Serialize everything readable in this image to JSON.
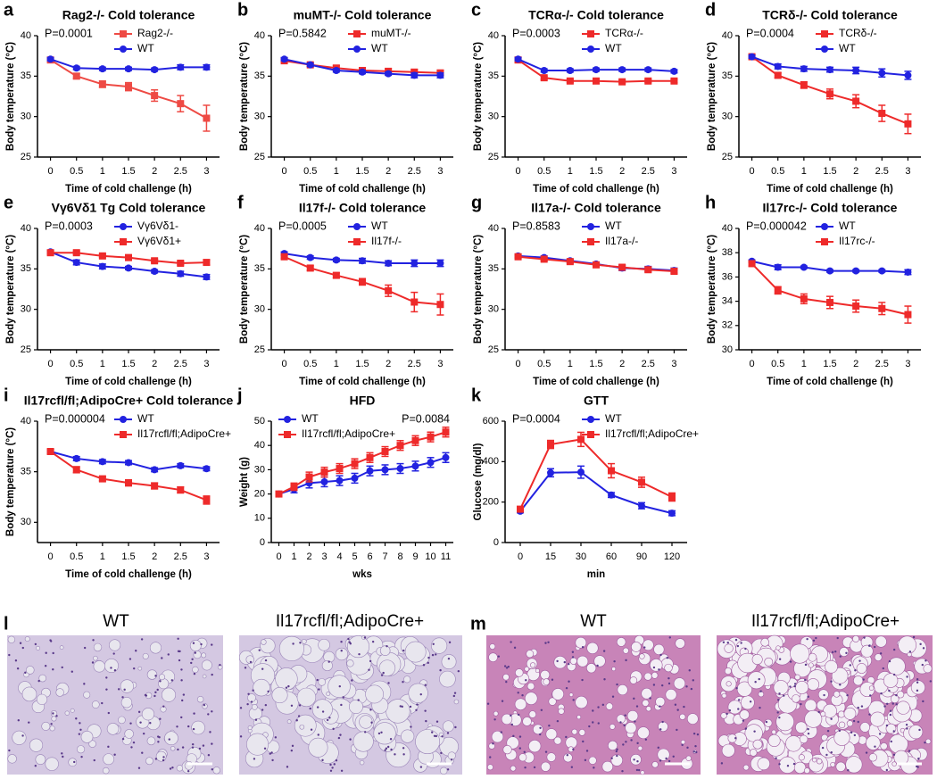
{
  "chart_data": [
    {
      "type": "line",
      "panel": "a",
      "title": "Rag2-/- Cold tolerance",
      "annotation": "P=0.0001",
      "xlabel": "Time of cold challenge (h)",
      "ylabel": "Body temperature (°C)",
      "x": [
        0,
        0.5,
        1,
        1.5,
        2,
        2.5,
        3
      ],
      "xlim": [
        -0.25,
        3.25
      ],
      "xticks": [
        0,
        0.5,
        1,
        1.5,
        2,
        2.5,
        3
      ],
      "ylim": [
        25,
        40
      ],
      "yticks": [
        25,
        30,
        35,
        40
      ],
      "legend": "upper right",
      "series": [
        {
          "name": "Rag2-/-",
          "color": "#ee4a44",
          "marker": "square",
          "values": [
            37.0,
            35.0,
            34.0,
            33.7,
            32.6,
            31.6,
            29.8
          ],
          "errors": [
            0.2,
            0.3,
            0.4,
            0.5,
            0.7,
            1.0,
            1.6
          ]
        },
        {
          "name": "WT",
          "color": "#2222e0",
          "marker": "circle",
          "values": [
            37.1,
            36.0,
            35.9,
            35.9,
            35.8,
            36.1,
            36.1
          ],
          "errors": [
            0.2,
            0.2,
            0.2,
            0.2,
            0.2,
            0.3,
            0.3
          ]
        }
      ]
    },
    {
      "type": "line",
      "panel": "b",
      "title": "muMT-/- Cold tolerance",
      "annotation": "P=0.5842",
      "xlabel": "Time of cold challenge (h)",
      "ylabel": "Body temperature (°C)",
      "x": [
        0,
        0.5,
        1,
        1.5,
        2,
        2.5,
        3
      ],
      "xlim": [
        -0.25,
        3.25
      ],
      "xticks": [
        0,
        0.5,
        1,
        1.5,
        2,
        2.5,
        3
      ],
      "ylim": [
        25,
        40
      ],
      "yticks": [
        25,
        30,
        35,
        40
      ],
      "legend": "upper right",
      "series": [
        {
          "name": "muMT-/-",
          "color": "#ee2a2a",
          "marker": "square",
          "values": [
            36.9,
            36.4,
            36.0,
            35.7,
            35.6,
            35.5,
            35.4
          ],
          "errors": [
            0.2,
            0.2,
            0.3,
            0.3,
            0.3,
            0.3,
            0.3
          ]
        },
        {
          "name": "WT",
          "color": "#2222e0",
          "marker": "circle",
          "values": [
            37.1,
            36.4,
            35.7,
            35.5,
            35.3,
            35.1,
            35.1
          ],
          "errors": [
            0.2,
            0.2,
            0.2,
            0.2,
            0.2,
            0.3,
            0.3
          ]
        }
      ]
    },
    {
      "type": "line",
      "panel": "c",
      "title": "TCRα-/- Cold tolerance",
      "annotation": "P=0.0003",
      "xlabel": "Time of cold challenge (h)",
      "ylabel": "Body temperature (°C)",
      "x": [
        0,
        0.5,
        1,
        1.5,
        2,
        2.5,
        3
      ],
      "xlim": [
        -0.25,
        3.25
      ],
      "xticks": [
        0,
        0.5,
        1,
        1.5,
        2,
        2.5,
        3
      ],
      "ylim": [
        25,
        40
      ],
      "yticks": [
        25,
        30,
        35,
        40
      ],
      "legend": "upper right",
      "series": [
        {
          "name": "TCRα-/-",
          "color": "#ee2a2a",
          "marker": "square",
          "values": [
            37.0,
            34.8,
            34.4,
            34.4,
            34.3,
            34.4,
            34.4
          ],
          "errors": [
            0.3,
            0.2,
            0.2,
            0.2,
            0.2,
            0.2,
            0.2
          ]
        },
        {
          "name": "WT",
          "color": "#2222e0",
          "marker": "circle",
          "values": [
            37.1,
            35.7,
            35.7,
            35.8,
            35.8,
            35.8,
            35.6
          ],
          "errors": [
            0.2,
            0.2,
            0.2,
            0.2,
            0.2,
            0.2,
            0.2
          ]
        }
      ]
    },
    {
      "type": "line",
      "panel": "d",
      "title": "TCRδ-/- Cold tolerance",
      "annotation": "P=0.0004",
      "xlabel": "Time of cold challenge (h)",
      "ylabel": "Body temperature (°C)",
      "x": [
        0,
        0.5,
        1,
        1.5,
        2,
        2.5,
        3
      ],
      "xlim": [
        -0.25,
        3.25
      ],
      "xticks": [
        0,
        0.5,
        1,
        1.5,
        2,
        2.5,
        3
      ],
      "ylim": [
        25,
        40
      ],
      "yticks": [
        25,
        30,
        35,
        40
      ],
      "legend": "upper right",
      "series": [
        {
          "name": "TCRδ-/-",
          "color": "#ee2a2a",
          "marker": "square",
          "values": [
            37.4,
            35.1,
            33.9,
            32.8,
            31.9,
            30.4,
            29.1
          ],
          "errors": [
            0.2,
            0.3,
            0.4,
            0.6,
            0.8,
            1.0,
            1.2
          ]
        },
        {
          "name": "WT",
          "color": "#2222e0",
          "marker": "circle",
          "values": [
            37.4,
            36.2,
            35.9,
            35.8,
            35.7,
            35.4,
            35.1
          ],
          "errors": [
            0.2,
            0.3,
            0.3,
            0.3,
            0.4,
            0.5,
            0.5
          ]
        }
      ]
    },
    {
      "type": "line",
      "panel": "e",
      "title": "Vγ6Vδ1 Tg Cold tolerance",
      "annotation": "P=0.0003",
      "xlabel": "Time of cold challenge (h)",
      "ylabel": "Body temperature (°C)",
      "x": [
        0,
        0.5,
        1,
        1.5,
        2,
        2.5,
        3
      ],
      "xlim": [
        -0.25,
        3.25
      ],
      "xticks": [
        0,
        0.5,
        1,
        1.5,
        2,
        2.5,
        3
      ],
      "ylim": [
        25,
        40
      ],
      "yticks": [
        25,
        30,
        35,
        40
      ],
      "legend": "upper right",
      "series": [
        {
          "name": "Vγ6Vδ1-",
          "color": "#2222e0",
          "marker": "circle",
          "values": [
            37.1,
            35.8,
            35.3,
            35.1,
            34.7,
            34.4,
            34.0
          ],
          "errors": [
            0.2,
            0.3,
            0.3,
            0.2,
            0.2,
            0.3,
            0.3
          ]
        },
        {
          "name": "Vγ6Vδ1+",
          "color": "#ee2a2a",
          "marker": "square",
          "values": [
            37.0,
            37.0,
            36.6,
            36.4,
            36.0,
            35.7,
            35.8
          ],
          "errors": [
            0.2,
            0.2,
            0.2,
            0.2,
            0.2,
            0.2,
            0.3
          ]
        }
      ]
    },
    {
      "type": "line",
      "panel": "f",
      "title": "Il17f-/- Cold tolerance",
      "annotation": "P=0.0005",
      "xlabel": "Time of cold challenge (h)",
      "ylabel": "Body temperature (°C)",
      "x": [
        0,
        0.5,
        1,
        1.5,
        2,
        2.5,
        3
      ],
      "xlim": [
        -0.25,
        3.25
      ],
      "xticks": [
        0,
        0.5,
        1,
        1.5,
        2,
        2.5,
        3
      ],
      "ylim": [
        25,
        40
      ],
      "yticks": [
        25,
        30,
        35,
        40
      ],
      "legend": "upper right",
      "series": [
        {
          "name": "WT",
          "color": "#2222e0",
          "marker": "circle",
          "values": [
            36.9,
            36.4,
            36.1,
            36.0,
            35.7,
            35.7,
            35.7
          ],
          "errors": [
            0.2,
            0.2,
            0.2,
            0.3,
            0.3,
            0.4,
            0.4
          ]
        },
        {
          "name": "Il17f-/-",
          "color": "#ee2a2a",
          "marker": "square",
          "values": [
            36.5,
            35.1,
            34.2,
            33.4,
            32.3,
            30.9,
            30.6
          ],
          "errors": [
            0.2,
            0.3,
            0.3,
            0.4,
            0.7,
            1.2,
            1.3
          ]
        }
      ]
    },
    {
      "type": "line",
      "panel": "g",
      "title": "Il17a-/- Cold tolerance",
      "annotation": "P=0.8583",
      "xlabel": "Time of cold challenge (h)",
      "ylabel": "Body temperature (°C)",
      "x": [
        0,
        0.5,
        1,
        1.5,
        2,
        2.5,
        3
      ],
      "xlim": [
        -0.25,
        3.25
      ],
      "xticks": [
        0,
        0.5,
        1,
        1.5,
        2,
        2.5,
        3
      ],
      "ylim": [
        25,
        40
      ],
      "yticks": [
        25,
        30,
        35,
        40
      ],
      "legend": "upper right",
      "series": [
        {
          "name": "WT",
          "color": "#2222e0",
          "marker": "circle",
          "values": [
            36.6,
            36.4,
            36.0,
            35.6,
            35.1,
            35.0,
            34.8
          ],
          "errors": [
            0.2,
            0.2,
            0.2,
            0.2,
            0.3,
            0.3,
            0.3
          ]
        },
        {
          "name": "Il17a-/-",
          "color": "#ee2a2a",
          "marker": "square",
          "values": [
            36.5,
            36.2,
            35.9,
            35.5,
            35.2,
            34.9,
            34.7
          ],
          "errors": [
            0.2,
            0.2,
            0.2,
            0.2,
            0.3,
            0.3,
            0.3
          ]
        }
      ]
    },
    {
      "type": "line",
      "panel": "h",
      "title": "Il17rc-/- Cold tolerance",
      "annotation": "P=0.000042",
      "xlabel": "Time of cold challenge (h)",
      "ylabel": "Body temperature (°C)",
      "x": [
        0,
        0.5,
        1,
        1.5,
        2,
        2.5,
        3
      ],
      "xlim": [
        -0.25,
        3.25
      ],
      "xticks": [
        0,
        0.5,
        1,
        1.5,
        2,
        2.5,
        3
      ],
      "ylim": [
        30,
        40
      ],
      "yticks": [
        30,
        32,
        34,
        36,
        38,
        40
      ],
      "legend": "upper right",
      "series": [
        {
          "name": "WT",
          "color": "#2222e0",
          "marker": "circle",
          "values": [
            37.3,
            36.8,
            36.8,
            36.5,
            36.5,
            36.5,
            36.4
          ],
          "errors": [
            0.1,
            0.2,
            0.1,
            0.1,
            0.1,
            0.1,
            0.2
          ]
        },
        {
          "name": "Il17rc-/-",
          "color": "#ee2a2a",
          "marker": "square",
          "values": [
            37.1,
            34.9,
            34.2,
            33.9,
            33.6,
            33.4,
            32.9
          ],
          "errors": [
            0.2,
            0.3,
            0.4,
            0.5,
            0.5,
            0.5,
            0.7
          ]
        }
      ]
    },
    {
      "type": "line",
      "panel": "i",
      "title": "Il17rcfl/fl;AdipoCre+ Cold tolerance",
      "annotation": "P=0.000004",
      "xlabel": "Time of cold challenge (h)",
      "ylabel": "Body temperature (°C)",
      "x": [
        0,
        0.5,
        1,
        1.5,
        2,
        2.5,
        3
      ],
      "xlim": [
        -0.25,
        3.25
      ],
      "xticks": [
        0,
        0.5,
        1,
        1.5,
        2,
        2.5,
        3
      ],
      "ylim": [
        28,
        40
      ],
      "yticks": [
        30,
        35,
        40
      ],
      "legend": "upper right",
      "series": [
        {
          "name": "WT",
          "color": "#2222e0",
          "marker": "circle",
          "values": [
            37.0,
            36.3,
            36.0,
            35.9,
            35.2,
            35.6,
            35.3
          ],
          "errors": [
            0.2,
            0.2,
            0.2,
            0.2,
            0.2,
            0.2,
            0.2
          ]
        },
        {
          "name": "Il17rcfl/fl;AdipoCre+",
          "color": "#ee2a2a",
          "marker": "square",
          "values": [
            37.0,
            35.2,
            34.3,
            33.9,
            33.6,
            33.2,
            32.2
          ],
          "errors": [
            0.2,
            0.3,
            0.2,
            0.3,
            0.3,
            0.3,
            0.4
          ]
        }
      ]
    },
    {
      "type": "line",
      "panel": "j",
      "title": "HFD",
      "annotation": "P=0.0084",
      "xlabel": "wks",
      "ylabel": "Weight (g)",
      "x": [
        0,
        1,
        2,
        3,
        4,
        5,
        6,
        7,
        8,
        9,
        10,
        11
      ],
      "xlim": [
        -0.5,
        11.5
      ],
      "xticks": [
        0,
        1,
        2,
        3,
        4,
        5,
        6,
        7,
        8,
        9,
        10,
        11
      ],
      "ylim": [
        0,
        50
      ],
      "yticks": [
        0,
        10,
        20,
        30,
        40,
        50
      ],
      "legend": "upper left",
      "series": [
        {
          "name": "WT",
          "color": "#2222e0",
          "marker": "circle",
          "values": [
            20,
            22,
            24.5,
            25,
            25.5,
            26.5,
            29.5,
            30,
            30.5,
            31.5,
            33,
            35
          ],
          "errors": [
            1,
            1.5,
            2,
            2,
            2,
            2,
            2,
            2,
            2,
            2,
            2,
            2
          ]
        },
        {
          "name": "Il17rcfl/fl;AdipoCre+",
          "color": "#ee2a2a",
          "marker": "square",
          "values": [
            20,
            23,
            27,
            29,
            30.5,
            32.5,
            35,
            37.5,
            40,
            42,
            43.5,
            45.5
          ],
          "errors": [
            1,
            1.5,
            2,
            2,
            2,
            2,
            2,
            2,
            2,
            2,
            2,
            2
          ]
        }
      ]
    },
    {
      "type": "line",
      "panel": "k",
      "title": "GTT",
      "annotation": "P=0.0004",
      "xlabel": "min",
      "ylabel": "Glucose (mg/dl)",
      "categories": [
        "0",
        "15",
        "30",
        "60",
        "90",
        "120"
      ],
      "ylim": [
        0,
        600
      ],
      "yticks": [
        0,
        200,
        400,
        600
      ],
      "legend": "upper right",
      "series": [
        {
          "name": "WT",
          "color": "#2222e0",
          "marker": "circle",
          "values": [
            155,
            345,
            348,
            235,
            182,
            145
          ],
          "errors": [
            8,
            20,
            30,
            12,
            15,
            12
          ]
        },
        {
          "name": "Il17rcfl/fl;AdipoCre+",
          "color": "#ee2a2a",
          "marker": "square",
          "values": [
            165,
            485,
            510,
            355,
            298,
            225
          ],
          "errors": [
            8,
            20,
            35,
            35,
            25,
            20
          ]
        }
      ]
    }
  ],
  "images": [
    {
      "panel": "l",
      "labels": [
        "WT",
        "Il17rcfl/fl;AdipoCre+"
      ]
    },
    {
      "panel": "m",
      "labels": [
        "WT",
        "Il17rcfl/fl;AdipoCre+"
      ]
    }
  ]
}
